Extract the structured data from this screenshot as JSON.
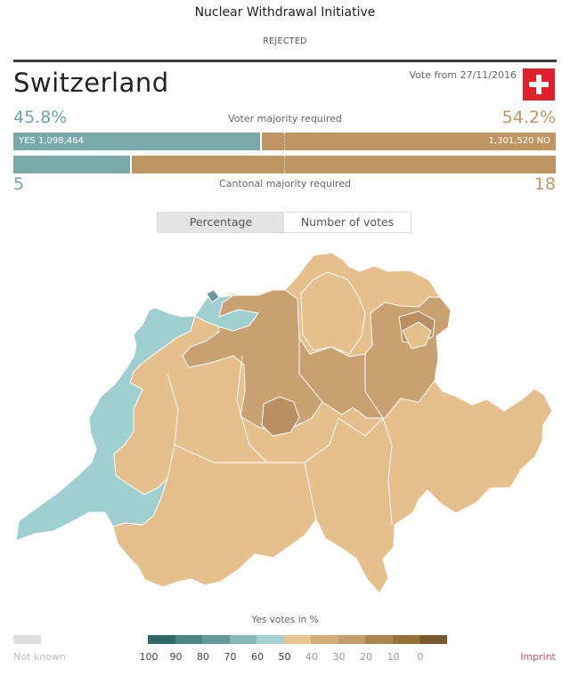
{
  "header": {
    "title": "Nuclear Withdrawal Initiative",
    "status": "REJECTED",
    "country": "Switzerland",
    "vote_date": "Vote from 27/11/2016"
  },
  "results": {
    "yes_percent": "45.8%",
    "no_percent": "54.2%",
    "voter_majority_label": "Voter majority required",
    "yes_votes_label": "YES 1,098,464",
    "no_votes_label": "1,301,520 NO",
    "yes_share": 0.458,
    "cantons_yes": "5",
    "cantons_no": "18",
    "cantonal_majority_label": "Cantonal majority required"
  },
  "toggle": {
    "percentage": "Percentage",
    "number_of_votes": "Number of votes",
    "selected": "percentage"
  },
  "legend": {
    "title": "Yes votes in %",
    "not_known": "Not known",
    "colors": [
      "#2f6a68",
      "#4b8684",
      "#62999a",
      "#84b8b9",
      "#a3d1d2",
      "#e7c591",
      "#d4ac7a",
      "#c39c6b",
      "#ae8453",
      "#977037",
      "#7a5a2c"
    ],
    "ticks": [
      "100",
      "90",
      "80",
      "70",
      "60",
      "50",
      "40",
      "30",
      "20",
      "10",
      "0"
    ]
  },
  "footer": {
    "imprint": "Imprint"
  },
  "colors": {
    "yes": "#77aaa9",
    "no": "#bf9663",
    "map_yes": "#9ed0d2",
    "map_no_light": "#e5c08d",
    "map_no_mid": "#c9a070",
    "map_no_dark": "#ba9062"
  }
}
